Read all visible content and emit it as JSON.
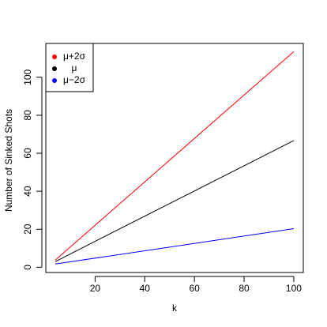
{
  "chart_data": {
    "type": "line",
    "x_label": "k",
    "y_label": "Number of Sinked Shots",
    "x": [
      4,
      100
    ],
    "series": [
      {
        "name": "μ+2σ",
        "color": "#ff0000",
        "values": [
          3.8,
          113.5
        ]
      },
      {
        "name": "μ",
        "color": "#000000",
        "values": [
          3,
          66.7
        ]
      },
      {
        "name": "μ−2σ",
        "color": "#0000ff",
        "values": [
          1.7,
          20.3
        ]
      }
    ],
    "xlim": [
      0.16,
      103.84
    ],
    "xticks": [
      20,
      40,
      60,
      80,
      100
    ],
    "ylim": [
      -2.76,
      117.8
    ],
    "yticks": [
      0,
      20,
      40,
      60,
      80,
      100
    ],
    "legend": "top-left",
    "grid": false
  }
}
